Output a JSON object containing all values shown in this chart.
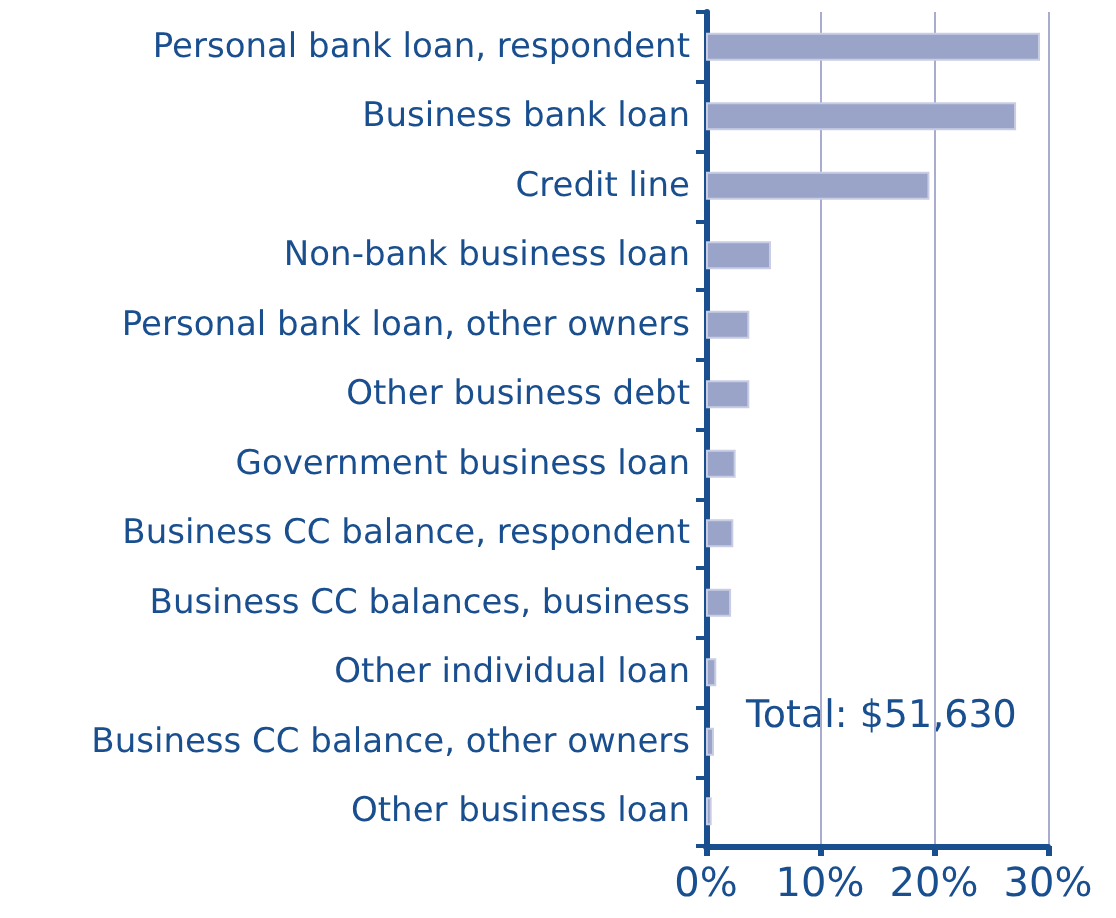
{
  "chart_data": {
    "type": "bar",
    "orientation": "horizontal",
    "categories": [
      "Personal bank loan, respondent",
      "Business bank loan",
      "Credit line",
      "Non-bank business loan",
      "Personal bank loan, other owners",
      "Other business debt",
      "Government business loan",
      "Business CC balance, respondent",
      "Business CC balances, business",
      "Other individual loan",
      "Business CC balance, other owners",
      "Other business loan"
    ],
    "values": [
      29.3,
      27.2,
      19.6,
      5.7,
      3.8,
      3.8,
      2.6,
      2.4,
      2.2,
      0.9,
      0.7,
      0.5
    ],
    "color": "#9aa3c8",
    "xlim": [
      0,
      30
    ],
    "xticks": [
      {
        "value": 0,
        "label": "0%"
      },
      {
        "value": 10,
        "label": "10%"
      },
      {
        "value": 20,
        "label": "20%"
      },
      {
        "value": 30,
        "label": "30%"
      }
    ],
    "grid": "x",
    "annotations": [
      "Total: $51,630"
    ]
  }
}
